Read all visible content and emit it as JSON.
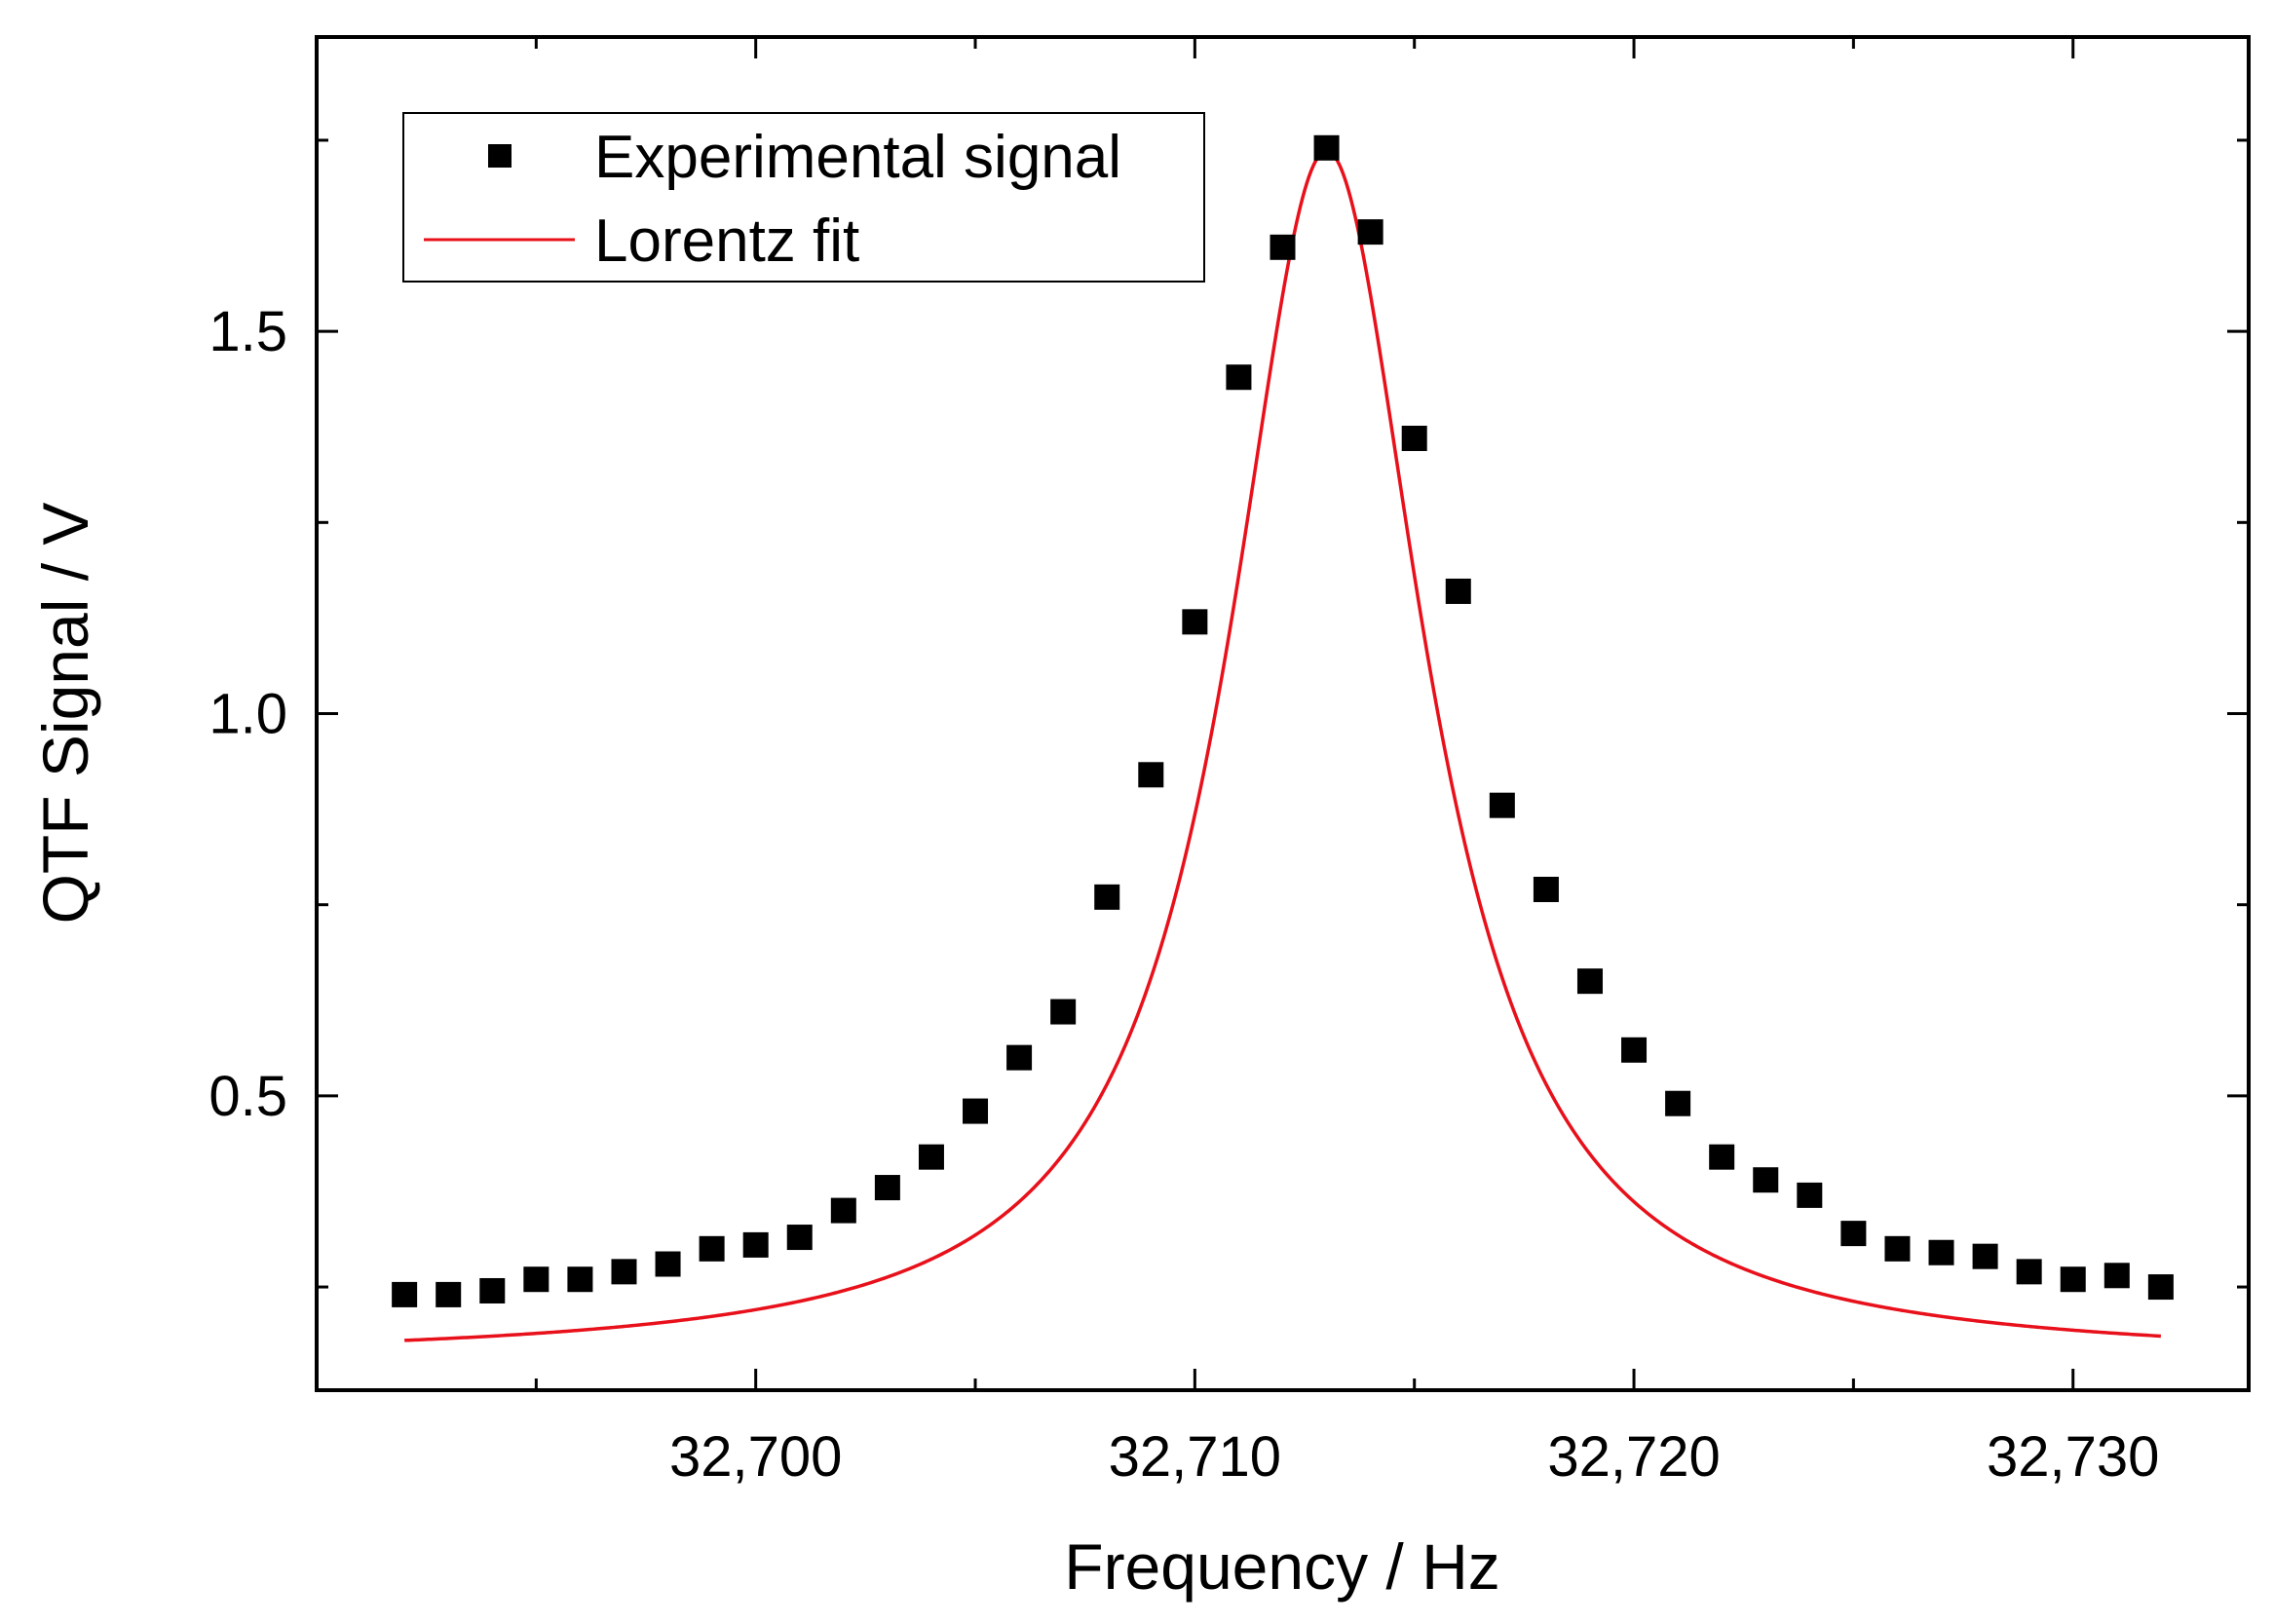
{
  "chart_data": {
    "type": "scatter",
    "title": "",
    "xlabel": "Frequency / Hz",
    "ylabel": "QTF Signal / V",
    "xlim": [
      32690,
      32734
    ],
    "ylim": [
      0.115,
      1.885
    ],
    "x_ticks": [
      32700,
      32710,
      32720,
      32730
    ],
    "x_tick_labels": [
      "32,700",
      "32,710",
      "32,720",
      "32,730"
    ],
    "x_minor_ticks": [
      32695,
      32705,
      32715,
      32725
    ],
    "y_ticks": [
      0.5,
      1.0,
      1.5
    ],
    "y_tick_labels": [
      "0.5",
      "1.0",
      "1.5"
    ],
    "y_minor_ticks": [
      0.25,
      0.75,
      1.25,
      1.75
    ],
    "grid": false,
    "legend_position": "top-left",
    "colors": {
      "data": "#000000",
      "fit": "#e8101a",
      "axis": "#000000"
    },
    "series": [
      {
        "name": "Experimental signal",
        "type": "scatter",
        "marker": "square",
        "x": [
          32692,
          32693,
          32694,
          32695,
          32696,
          32697,
          32698,
          32699,
          32700,
          32701,
          32702,
          32703,
          32704,
          32705,
          32706,
          32707,
          32708,
          32709,
          32710,
          32711,
          32712,
          32713,
          32714,
          32715,
          32716,
          32717,
          32718,
          32719,
          32720,
          32721,
          32722,
          32723,
          32724,
          32725,
          32726,
          32727,
          32728,
          32729,
          32730,
          32731,
          32732
        ],
        "y": [
          0.24,
          0.24,
          0.245,
          0.26,
          0.26,
          0.27,
          0.28,
          0.3,
          0.305,
          0.315,
          0.35,
          0.38,
          0.42,
          0.48,
          0.55,
          0.61,
          0.76,
          0.92,
          1.12,
          1.44,
          1.61,
          1.74,
          1.63,
          1.36,
          1.16,
          0.88,
          0.77,
          0.65,
          0.56,
          0.49,
          0.42,
          0.39,
          0.37,
          0.32,
          0.3,
          0.295,
          0.29,
          0.27,
          0.26,
          0.265,
          0.25
        ]
      },
      {
        "name": "Lorentz fit",
        "type": "line",
        "model": "lorentz",
        "x_range": [
          32692,
          32732
        ],
        "params": {
          "y0": 0.154,
          "A": 1.582,
          "xc": 32713.0,
          "half_width": 2.72
        }
      }
    ]
  }
}
